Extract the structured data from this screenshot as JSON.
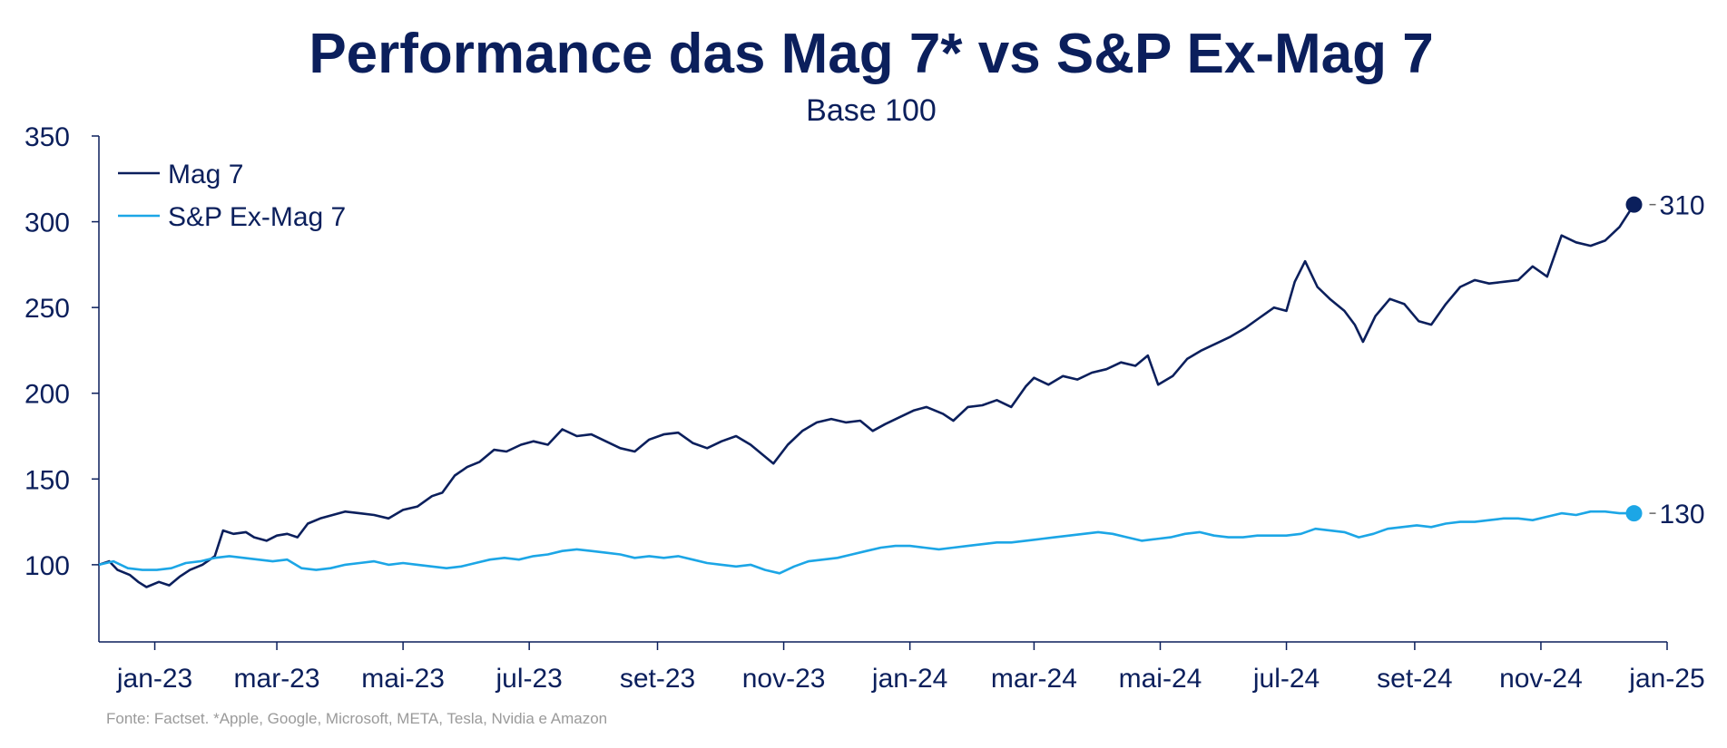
{
  "chart_data": {
    "type": "line",
    "title": "Performance das Mag 7* vs S&P Ex-Mag 7",
    "subtitle": "Base 100",
    "source": "Fonte: Factset. *Apple, Google, Microsoft, META, Tesla, Nvidia e Amazon",
    "xlim": [
      "2022-12-05",
      "2025-01-01"
    ],
    "ylim": [
      55,
      350
    ],
    "y_ticks": [
      100,
      150,
      200,
      250,
      300,
      350
    ],
    "x_ticks": [
      {
        "date": "2023-01-01",
        "label": "jan-23"
      },
      {
        "date": "2023-03-01",
        "label": "mar-23"
      },
      {
        "date": "2023-05-01",
        "label": "mai-23"
      },
      {
        "date": "2023-07-01",
        "label": "jul-23"
      },
      {
        "date": "2023-09-01",
        "label": "set-23"
      },
      {
        "date": "2023-11-01",
        "label": "nov-23"
      },
      {
        "date": "2024-01-01",
        "label": "jan-24"
      },
      {
        "date": "2024-03-01",
        "label": "mar-24"
      },
      {
        "date": "2024-05-01",
        "label": "mai-24"
      },
      {
        "date": "2024-07-01",
        "label": "jul-24"
      },
      {
        "date": "2024-09-01",
        "label": "set-24"
      },
      {
        "date": "2024-11-01",
        "label": "nov-24"
      },
      {
        "date": "2025-01-01",
        "label": "jan-25"
      }
    ],
    "grid": false,
    "legend_position": "top-left",
    "series": [
      {
        "name": "Mag 7",
        "color": "#0b1f5c",
        "end_label": "310",
        "points": [
          [
            "2022-12-05",
            100
          ],
          [
            "2022-12-10",
            102
          ],
          [
            "2022-12-14",
            97
          ],
          [
            "2022-12-20",
            94
          ],
          [
            "2022-12-24",
            90
          ],
          [
            "2022-12-28",
            87
          ],
          [
            "2023-01-03",
            90
          ],
          [
            "2023-01-08",
            88
          ],
          [
            "2023-01-13",
            93
          ],
          [
            "2023-01-18",
            97
          ],
          [
            "2023-01-24",
            100
          ],
          [
            "2023-01-30",
            105
          ],
          [
            "2023-02-03",
            120
          ],
          [
            "2023-02-08",
            118
          ],
          [
            "2023-02-14",
            119
          ],
          [
            "2023-02-18",
            116
          ],
          [
            "2023-02-24",
            114
          ],
          [
            "2023-03-01",
            117
          ],
          [
            "2023-03-06",
            118
          ],
          [
            "2023-03-11",
            116
          ],
          [
            "2023-03-16",
            124
          ],
          [
            "2023-03-22",
            127
          ],
          [
            "2023-03-28",
            129
          ],
          [
            "2023-04-03",
            131
          ],
          [
            "2023-04-10",
            130
          ],
          [
            "2023-04-17",
            129
          ],
          [
            "2023-04-24",
            127
          ],
          [
            "2023-05-01",
            132
          ],
          [
            "2023-05-08",
            134
          ],
          [
            "2023-05-15",
            140
          ],
          [
            "2023-05-20",
            142
          ],
          [
            "2023-05-26",
            152
          ],
          [
            "2023-06-01",
            157
          ],
          [
            "2023-06-07",
            160
          ],
          [
            "2023-06-14",
            167
          ],
          [
            "2023-06-20",
            166
          ],
          [
            "2023-06-27",
            170
          ],
          [
            "2023-07-03",
            172
          ],
          [
            "2023-07-10",
            170
          ],
          [
            "2023-07-17",
            179
          ],
          [
            "2023-07-24",
            175
          ],
          [
            "2023-07-31",
            176
          ],
          [
            "2023-08-07",
            172
          ],
          [
            "2023-08-14",
            168
          ],
          [
            "2023-08-21",
            166
          ],
          [
            "2023-08-28",
            173
          ],
          [
            "2023-09-04",
            176
          ],
          [
            "2023-09-11",
            177
          ],
          [
            "2023-09-18",
            171
          ],
          [
            "2023-09-25",
            168
          ],
          [
            "2023-10-02",
            172
          ],
          [
            "2023-10-09",
            175
          ],
          [
            "2023-10-16",
            170
          ],
          [
            "2023-10-23",
            163
          ],
          [
            "2023-10-27",
            159
          ],
          [
            "2023-11-03",
            170
          ],
          [
            "2023-11-10",
            178
          ],
          [
            "2023-11-17",
            183
          ],
          [
            "2023-11-24",
            185
          ],
          [
            "2023-12-01",
            183
          ],
          [
            "2023-12-08",
            184
          ],
          [
            "2023-12-14",
            178
          ],
          [
            "2023-12-20",
            182
          ],
          [
            "2023-12-27",
            186
          ],
          [
            "2024-01-03",
            190
          ],
          [
            "2024-01-09",
            192
          ],
          [
            "2024-01-17",
            188
          ],
          [
            "2024-01-22",
            184
          ],
          [
            "2024-01-29",
            192
          ],
          [
            "2024-02-05",
            193
          ],
          [
            "2024-02-12",
            196
          ],
          [
            "2024-02-19",
            192
          ],
          [
            "2024-02-26",
            204
          ],
          [
            "2024-03-01",
            209
          ],
          [
            "2024-03-08",
            205
          ],
          [
            "2024-03-15",
            210
          ],
          [
            "2024-03-22",
            208
          ],
          [
            "2024-03-29",
            212
          ],
          [
            "2024-04-05",
            214
          ],
          [
            "2024-04-12",
            218
          ],
          [
            "2024-04-19",
            216
          ],
          [
            "2024-04-25",
            222
          ],
          [
            "2024-04-30",
            205
          ],
          [
            "2024-05-07",
            210
          ],
          [
            "2024-05-14",
            220
          ],
          [
            "2024-05-21",
            225
          ],
          [
            "2024-05-28",
            229
          ],
          [
            "2024-06-04",
            233
          ],
          [
            "2024-06-11",
            238
          ],
          [
            "2024-06-18",
            244
          ],
          [
            "2024-06-25",
            250
          ],
          [
            "2024-07-01",
            248
          ],
          [
            "2024-07-05",
            265
          ],
          [
            "2024-07-10",
            277
          ],
          [
            "2024-07-16",
            262
          ],
          [
            "2024-07-22",
            255
          ],
          [
            "2024-07-29",
            248
          ],
          [
            "2024-08-03",
            240
          ],
          [
            "2024-08-07",
            230
          ],
          [
            "2024-08-13",
            245
          ],
          [
            "2024-08-20",
            255
          ],
          [
            "2024-08-27",
            252
          ],
          [
            "2024-09-03",
            242
          ],
          [
            "2024-09-09",
            240
          ],
          [
            "2024-09-16",
            252
          ],
          [
            "2024-09-23",
            262
          ],
          [
            "2024-09-30",
            266
          ],
          [
            "2024-10-07",
            264
          ],
          [
            "2024-10-14",
            265
          ],
          [
            "2024-10-21",
            266
          ],
          [
            "2024-10-28",
            274
          ],
          [
            "2024-11-04",
            268
          ],
          [
            "2024-11-11",
            292
          ],
          [
            "2024-11-18",
            288
          ],
          [
            "2024-11-25",
            286
          ],
          [
            "2024-12-02",
            289
          ],
          [
            "2024-12-09",
            297
          ],
          [
            "2024-12-16",
            310
          ]
        ]
      },
      {
        "name": "S&P Ex-Mag 7",
        "color": "#1ca6e6",
        "end_label": "130",
        "points": [
          [
            "2022-12-05",
            100
          ],
          [
            "2022-12-12",
            102
          ],
          [
            "2022-12-19",
            98
          ],
          [
            "2022-12-26",
            97
          ],
          [
            "2023-01-02",
            97
          ],
          [
            "2023-01-09",
            98
          ],
          [
            "2023-01-16",
            101
          ],
          [
            "2023-01-23",
            102
          ],
          [
            "2023-01-30",
            104
          ],
          [
            "2023-02-06",
            105
          ],
          [
            "2023-02-13",
            104
          ],
          [
            "2023-02-20",
            103
          ],
          [
            "2023-02-27",
            102
          ],
          [
            "2023-03-06",
            103
          ],
          [
            "2023-03-13",
            98
          ],
          [
            "2023-03-20",
            97
          ],
          [
            "2023-03-27",
            98
          ],
          [
            "2023-04-03",
            100
          ],
          [
            "2023-04-10",
            101
          ],
          [
            "2023-04-17",
            102
          ],
          [
            "2023-04-24",
            100
          ],
          [
            "2023-05-01",
            101
          ],
          [
            "2023-05-08",
            100
          ],
          [
            "2023-05-15",
            99
          ],
          [
            "2023-05-22",
            98
          ],
          [
            "2023-05-29",
            99
          ],
          [
            "2023-06-05",
            101
          ],
          [
            "2023-06-12",
            103
          ],
          [
            "2023-06-19",
            104
          ],
          [
            "2023-06-26",
            103
          ],
          [
            "2023-07-03",
            105
          ],
          [
            "2023-07-10",
            106
          ],
          [
            "2023-07-17",
            108
          ],
          [
            "2023-07-24",
            109
          ],
          [
            "2023-07-31",
            108
          ],
          [
            "2023-08-07",
            107
          ],
          [
            "2023-08-14",
            106
          ],
          [
            "2023-08-21",
            104
          ],
          [
            "2023-08-28",
            105
          ],
          [
            "2023-09-04",
            104
          ],
          [
            "2023-09-11",
            105
          ],
          [
            "2023-09-18",
            103
          ],
          [
            "2023-09-25",
            101
          ],
          [
            "2023-10-02",
            100
          ],
          [
            "2023-10-09",
            99
          ],
          [
            "2023-10-16",
            100
          ],
          [
            "2023-10-23",
            97
          ],
          [
            "2023-10-30",
            95
          ],
          [
            "2023-11-06",
            99
          ],
          [
            "2023-11-13",
            102
          ],
          [
            "2023-11-20",
            103
          ],
          [
            "2023-11-27",
            104
          ],
          [
            "2023-12-04",
            106
          ],
          [
            "2023-12-11",
            108
          ],
          [
            "2023-12-18",
            110
          ],
          [
            "2023-12-25",
            111
          ],
          [
            "2024-01-01",
            111
          ],
          [
            "2024-01-08",
            110
          ],
          [
            "2024-01-15",
            109
          ],
          [
            "2024-01-22",
            110
          ],
          [
            "2024-01-29",
            111
          ],
          [
            "2024-02-05",
            112
          ],
          [
            "2024-02-12",
            113
          ],
          [
            "2024-02-19",
            113
          ],
          [
            "2024-02-26",
            114
          ],
          [
            "2024-03-04",
            115
          ],
          [
            "2024-03-11",
            116
          ],
          [
            "2024-03-18",
            117
          ],
          [
            "2024-03-25",
            118
          ],
          [
            "2024-04-01",
            119
          ],
          [
            "2024-04-08",
            118
          ],
          [
            "2024-04-15",
            116
          ],
          [
            "2024-04-22",
            114
          ],
          [
            "2024-04-29",
            115
          ],
          [
            "2024-05-06",
            116
          ],
          [
            "2024-05-13",
            118
          ],
          [
            "2024-05-20",
            119
          ],
          [
            "2024-05-27",
            117
          ],
          [
            "2024-06-03",
            116
          ],
          [
            "2024-06-10",
            116
          ],
          [
            "2024-06-17",
            117
          ],
          [
            "2024-06-24",
            117
          ],
          [
            "2024-07-01",
            117
          ],
          [
            "2024-07-08",
            118
          ],
          [
            "2024-07-15",
            121
          ],
          [
            "2024-07-22",
            120
          ],
          [
            "2024-07-29",
            119
          ],
          [
            "2024-08-05",
            116
          ],
          [
            "2024-08-12",
            118
          ],
          [
            "2024-08-19",
            121
          ],
          [
            "2024-08-26",
            122
          ],
          [
            "2024-09-02",
            123
          ],
          [
            "2024-09-09",
            122
          ],
          [
            "2024-09-16",
            124
          ],
          [
            "2024-09-23",
            125
          ],
          [
            "2024-09-30",
            125
          ],
          [
            "2024-10-07",
            126
          ],
          [
            "2024-10-14",
            127
          ],
          [
            "2024-10-21",
            127
          ],
          [
            "2024-10-28",
            126
          ],
          [
            "2024-11-04",
            128
          ],
          [
            "2024-11-11",
            130
          ],
          [
            "2024-11-18",
            129
          ],
          [
            "2024-11-25",
            131
          ],
          [
            "2024-12-02",
            131
          ],
          [
            "2024-12-09",
            130
          ],
          [
            "2024-12-16",
            130
          ]
        ]
      }
    ]
  }
}
